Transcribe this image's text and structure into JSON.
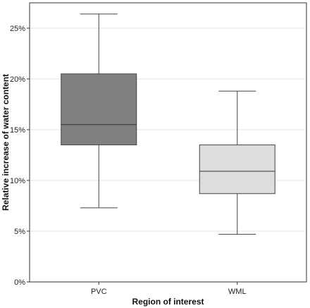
{
  "chart_data": {
    "type": "boxplot",
    "title": "",
    "xlabel": "Region of interest",
    "ylabel": "Relative increase of water content",
    "ylim": [
      0,
      27.5
    ],
    "yticks": [
      0,
      5,
      10,
      15,
      20,
      25
    ],
    "ytick_labels": [
      "0%",
      "5%",
      "10%",
      "15%",
      "20%",
      "25%"
    ],
    "grid": "horizontal",
    "categories": [
      "PVC",
      "WML"
    ],
    "series": [
      {
        "category": "PVC",
        "min": 7.3,
        "q1": 13.5,
        "median": 15.5,
        "q3": 20.5,
        "max": 26.4,
        "color": "#808080"
      },
      {
        "category": "WML",
        "min": 4.7,
        "q1": 8.7,
        "median": 10.9,
        "q3": 13.5,
        "max": 18.8,
        "color": "#dddddd"
      }
    ]
  }
}
